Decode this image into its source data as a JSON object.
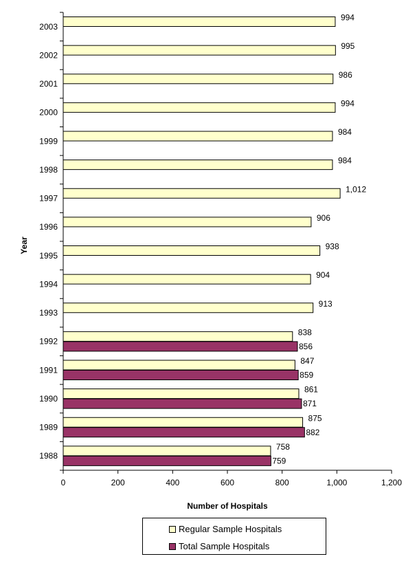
{
  "chart_data": {
    "type": "bar",
    "orientation": "horizontal",
    "categories": [
      "2003",
      "2002",
      "2001",
      "2000",
      "1999",
      "1998",
      "1997",
      "1996",
      "1995",
      "1994",
      "1993",
      "1992",
      "1991",
      "1990",
      "1989",
      "1988"
    ],
    "series": [
      {
        "name": "Regular Sample Hospitals",
        "color": "#FFFFCC",
        "values": [
          994,
          995,
          986,
          994,
          984,
          984,
          1012,
          906,
          938,
          904,
          913,
          838,
          847,
          861,
          875,
          758
        ],
        "labels": [
          "994",
          "995",
          "986",
          "994",
          "984",
          "984",
          "1,012",
          "906",
          "938",
          "904",
          "913",
          "838",
          "847",
          "861",
          "875",
          "758"
        ]
      },
      {
        "name": "Total Sample Hospitals",
        "color": "#993366",
        "values": [
          null,
          null,
          null,
          null,
          null,
          null,
          null,
          null,
          null,
          null,
          null,
          856,
          859,
          871,
          882,
          759
        ],
        "labels": [
          null,
          null,
          null,
          null,
          null,
          null,
          null,
          null,
          null,
          null,
          null,
          "856",
          "859",
          "871",
          "882",
          "759"
        ]
      }
    ],
    "xlabel": "Number of Hospitals",
    "ylabel": "Year",
    "xlim": [
      0,
      1200
    ],
    "xticks": [
      "0",
      "200",
      "400",
      "600",
      "800",
      "1,000",
      "1,200"
    ],
    "grid": false,
    "legend": "bottom"
  }
}
